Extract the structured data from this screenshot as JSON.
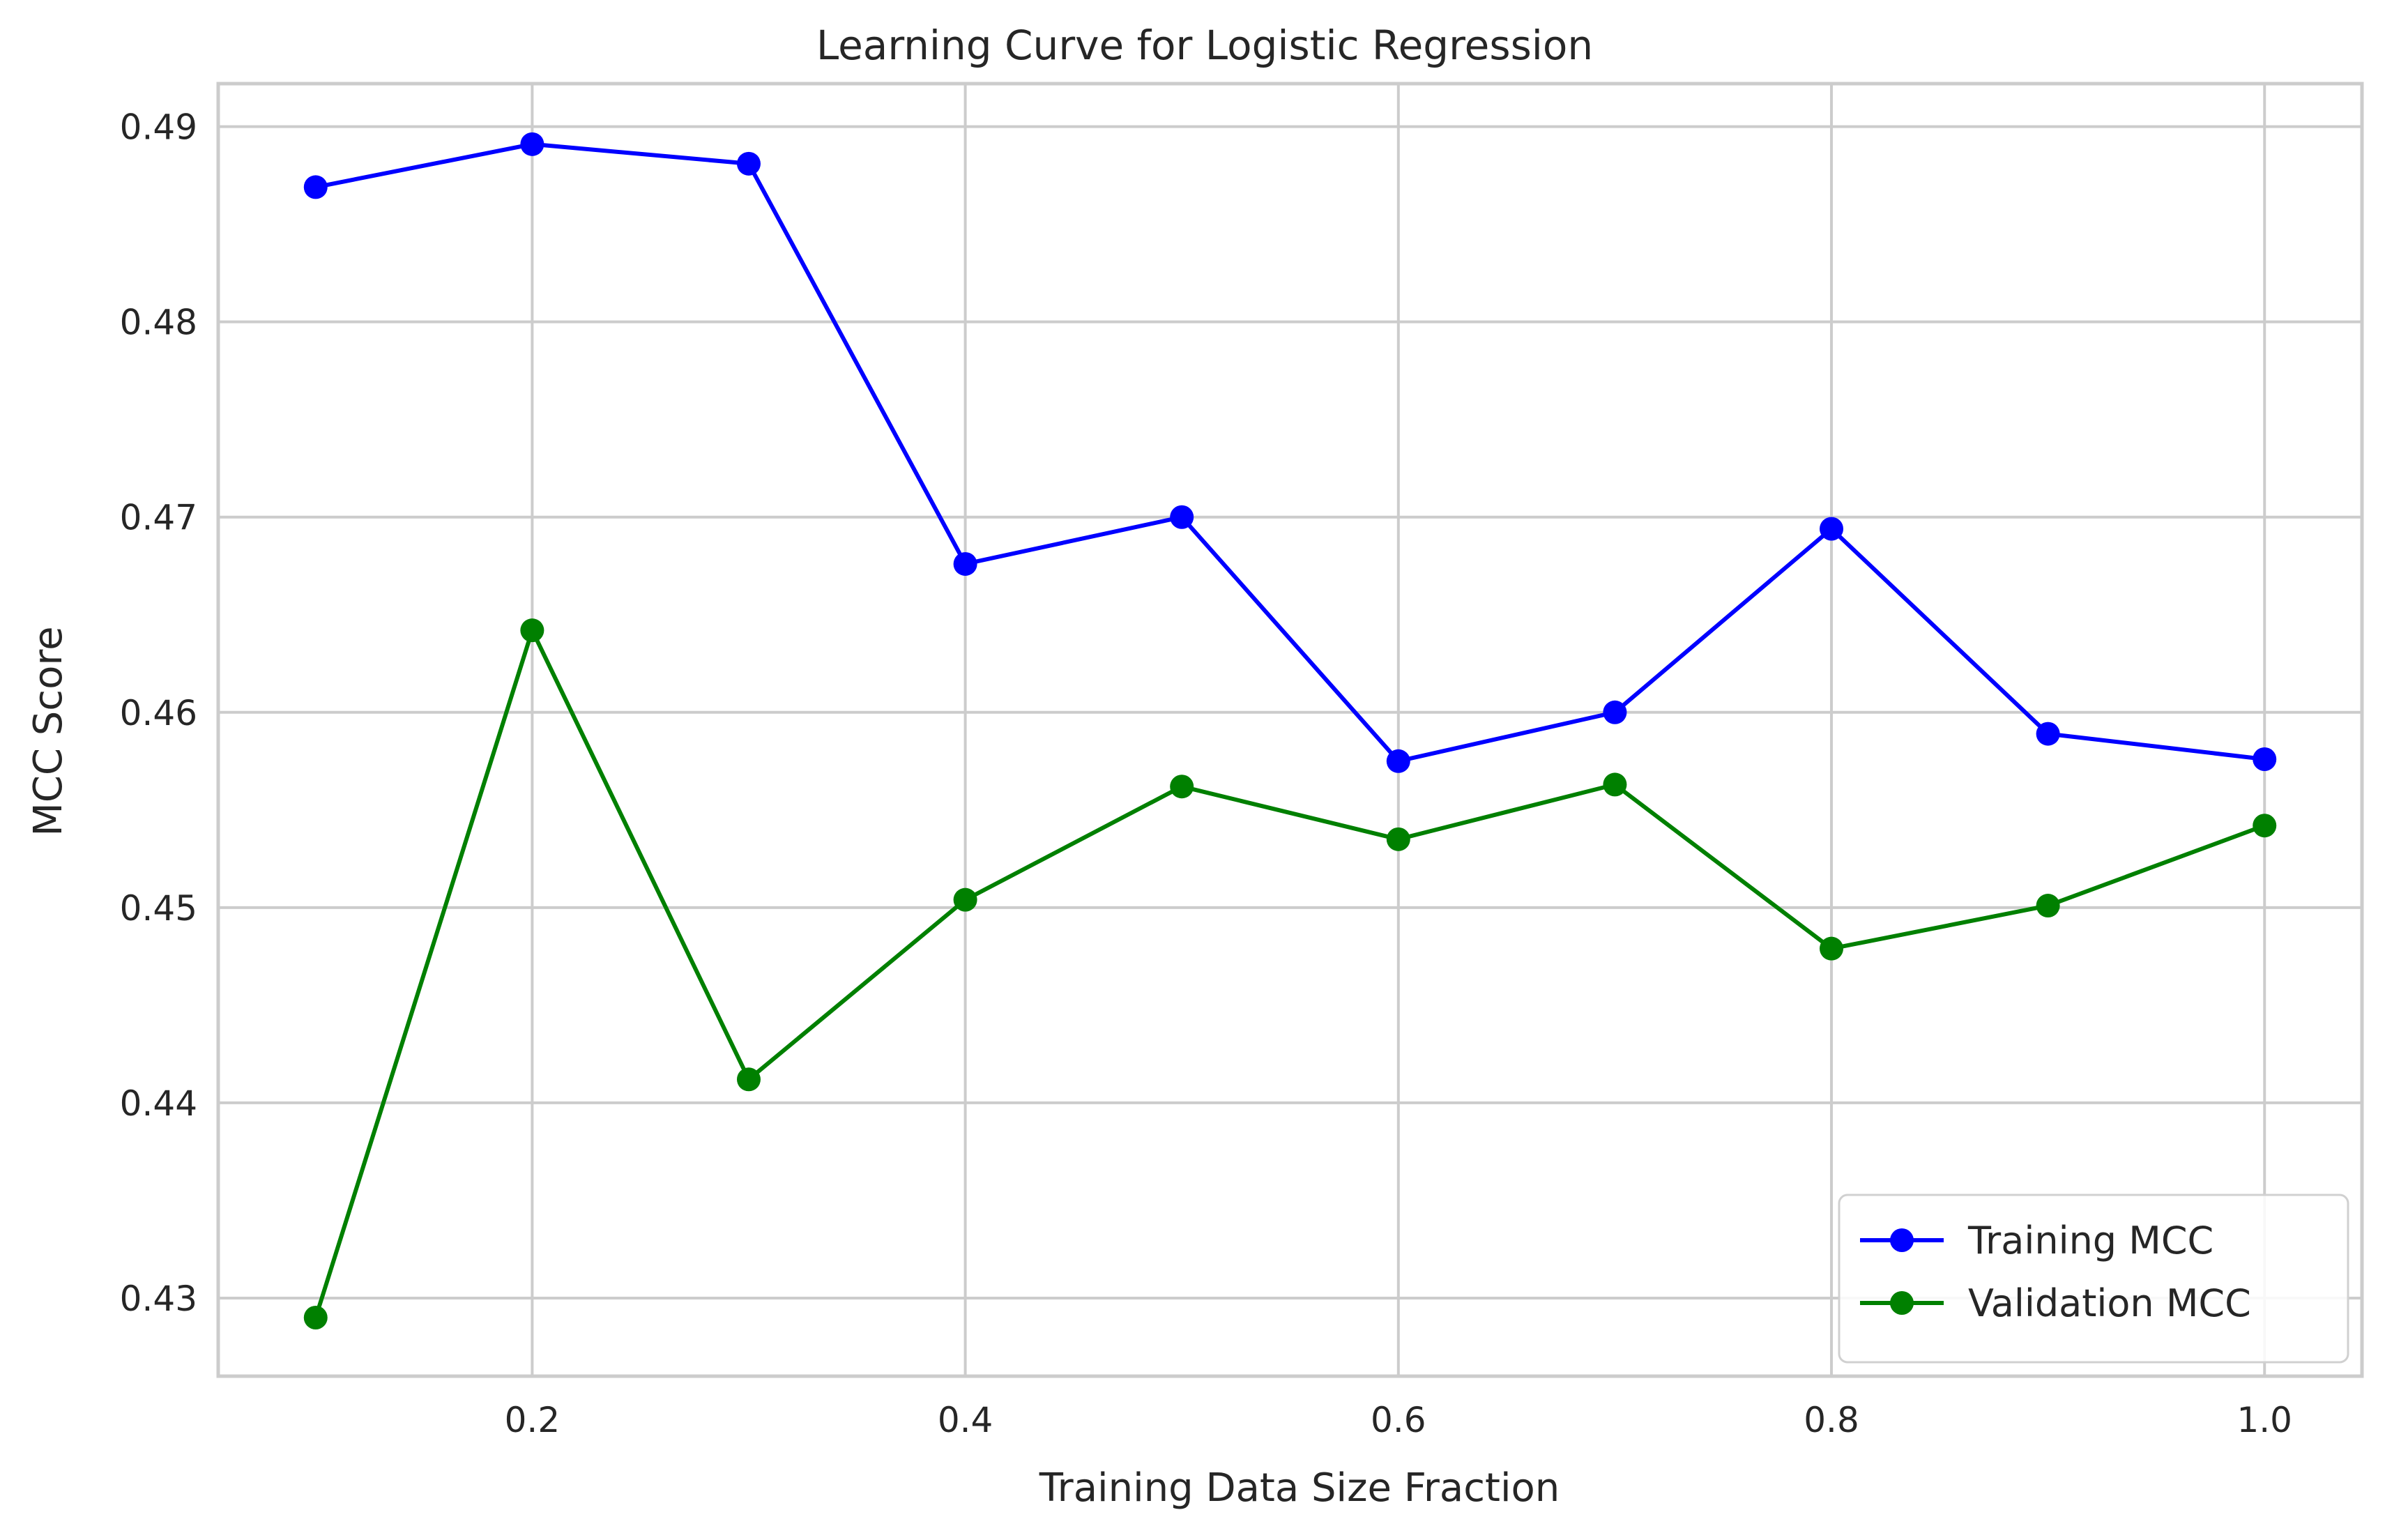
{
  "chart_data": {
    "type": "line",
    "title": "Learning Curve for Logistic Regression",
    "xlabel": "Training Data Size Fraction",
    "ylabel": "MCC Score",
    "x": [
      0.1,
      0.2,
      0.3,
      0.4,
      0.5,
      0.6,
      0.7,
      0.8,
      0.9,
      1.0
    ],
    "xlim": [
      0.055,
      1.045
    ],
    "ylim": [
      0.426,
      0.4922
    ],
    "xticks": [
      0.2,
      0.4,
      0.6,
      0.8,
      1.0
    ],
    "xtick_labels": [
      "0.2",
      "0.4",
      "0.6",
      "0.8",
      "1.0"
    ],
    "yticks": [
      0.43,
      0.44,
      0.45,
      0.46,
      0.47,
      0.48,
      0.49
    ],
    "ytick_labels": [
      "0.43",
      "0.44",
      "0.45",
      "0.46",
      "0.47",
      "0.48",
      "0.49"
    ],
    "grid": true,
    "legend_position": "lower-right",
    "series": [
      {
        "name": "Training MCC",
        "color": "#0000ff",
        "marker": "circle",
        "values": [
          0.4869,
          0.4891,
          0.4881,
          0.4676,
          0.47,
          0.4575,
          0.46,
          0.4694,
          0.4589,
          0.4576
        ]
      },
      {
        "name": "Validation MCC",
        "color": "#008000",
        "marker": "circle",
        "values": [
          0.429,
          0.4642,
          0.4412,
          0.4504,
          0.4562,
          0.4535,
          0.4563,
          0.4479,
          0.4501,
          0.4542
        ]
      }
    ]
  }
}
